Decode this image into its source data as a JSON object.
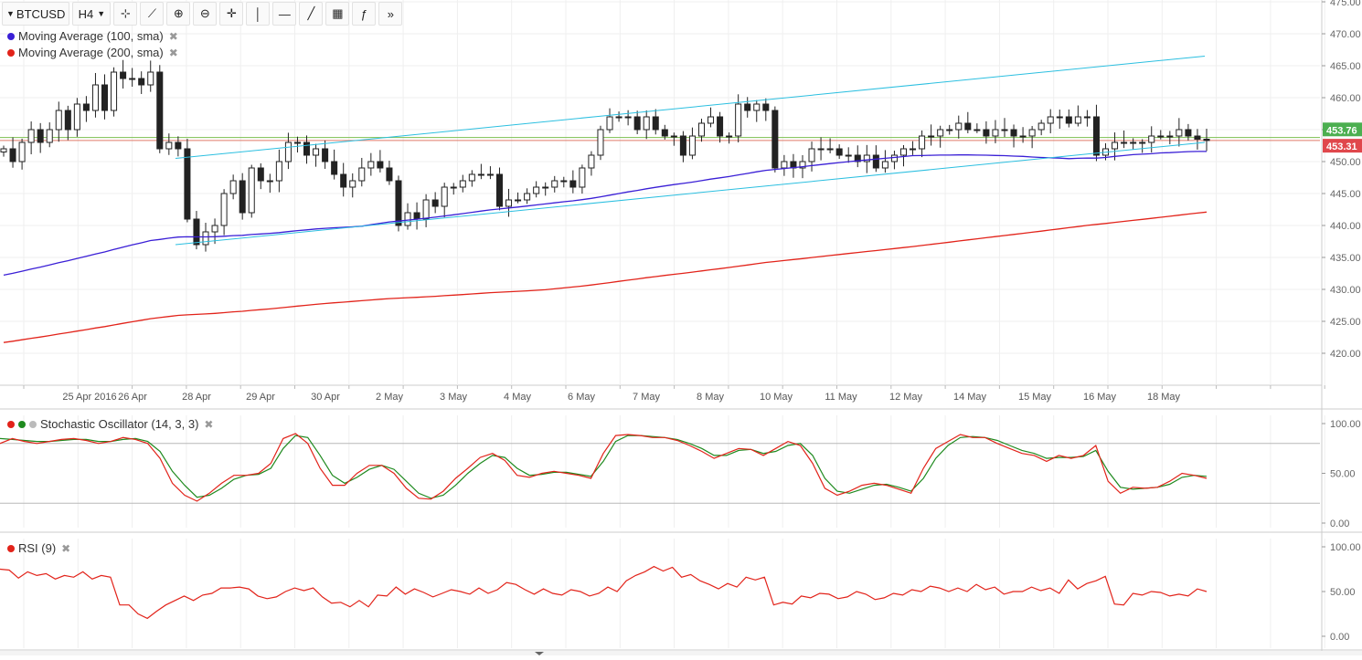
{
  "toolbar": {
    "symbol": "BTCUSD",
    "interval": "H4",
    "tools": [
      {
        "name": "crosshair-icon",
        "glyph": "⊹"
      },
      {
        "name": "trend-chart-icon",
        "glyph": "⟋"
      },
      {
        "name": "zoom-in-icon",
        "glyph": "⊕"
      },
      {
        "name": "zoom-out-icon",
        "glyph": "⊖"
      },
      {
        "name": "cross-cursor-icon",
        "glyph": "✛"
      },
      {
        "name": "vertical-line-icon",
        "glyph": "│"
      },
      {
        "name": "horizontal-line-icon",
        "glyph": "—"
      },
      {
        "name": "trend-line-icon",
        "glyph": "╱"
      },
      {
        "name": "fibonacci-icon",
        "glyph": "▦"
      },
      {
        "name": "function-icon",
        "glyph": "ƒ"
      },
      {
        "name": "fast-forward-icon",
        "glyph": "»"
      }
    ]
  },
  "legends": {
    "ma100": {
      "label": "Moving Average (100, sma)",
      "color": "#3a1fd6"
    },
    "ma200": {
      "label": "Moving Average (200, sma)",
      "color": "#e2231a"
    },
    "stoch": {
      "label": "Stochastic Oscillator (14, 3, 3)"
    },
    "rsi": {
      "label": "RSI (9)"
    }
  },
  "colors": {
    "up": "#ffffff",
    "down": "#222222",
    "channel": "#2bbfe0",
    "stochK": "#e2231a",
    "stochD": "#1f8a1f",
    "rsi": "#e2231a",
    "priceGreen": "#4caf50",
    "priceRed": "#e0474c"
  },
  "chart_data": [
    {
      "type": "candlestick",
      "title": "BTCUSD H4",
      "ylim": [
        415,
        475
      ],
      "yticks": [
        420,
        425,
        430,
        435,
        440,
        445,
        450,
        455,
        460,
        465,
        470,
        475
      ],
      "xlabels": [
        "25 Apr 2016",
        "26 Apr",
        "28 Apr",
        "29 Apr",
        "30 Apr",
        "2 May",
        "3 May",
        "4 May",
        "6 May",
        "7 May",
        "8 May",
        "10 May",
        "11 May",
        "12 May",
        "14 May",
        "15 May",
        "16 May",
        "18 May"
      ],
      "price_labels": {
        "green": "453.76",
        "red": "453.31"
      },
      "price_levels": {
        "green": 453.76,
        "red": 453.31
      },
      "close": [
        452,
        450,
        453,
        455,
        453,
        455,
        458,
        455,
        459,
        458,
        462,
        458,
        464,
        463,
        463,
        462,
        464,
        452,
        453,
        452,
        441,
        437,
        439,
        440,
        445,
        447,
        442,
        449,
        447,
        447,
        450,
        453,
        453,
        451,
        452,
        450,
        448,
        446,
        447,
        449,
        450,
        449,
        447,
        440,
        442,
        441,
        444,
        443,
        446,
        446,
        447,
        448,
        448,
        448,
        443,
        444,
        444,
        445,
        446,
        446,
        447,
        447,
        446,
        449,
        451,
        455,
        457,
        457,
        457,
        455,
        457,
        455,
        454,
        454,
        451,
        454,
        456,
        457,
        454,
        454,
        459,
        458,
        459,
        458,
        449,
        450,
        449,
        450,
        452,
        452,
        452,
        451,
        451,
        450,
        451,
        449,
        450,
        451,
        452,
        452,
        454,
        454,
        455,
        455,
        456,
        455,
        455,
        454,
        455,
        455,
        454,
        454,
        455,
        456,
        457,
        457,
        456,
        457,
        457,
        451,
        452,
        453,
        453,
        453,
        453,
        454,
        454,
        454,
        455,
        454,
        453.5,
        453.3
      ]
    },
    {
      "type": "line",
      "name": "Stochastic Oscillator (14, 3, 3)",
      "ylim": [
        0,
        100
      ],
      "yticks": [
        0,
        50,
        100
      ],
      "levels": [
        20,
        80
      ],
      "K": [
        80,
        85,
        82,
        80,
        82,
        84,
        85,
        83,
        80,
        82,
        86,
        84,
        80,
        65,
        40,
        28,
        22,
        30,
        40,
        48,
        48,
        50,
        60,
        85,
        90,
        80,
        55,
        38,
        38,
        50,
        58,
        58,
        50,
        35,
        25,
        24,
        32,
        45,
        55,
        66,
        70,
        63,
        48,
        46,
        50,
        52,
        50,
        48,
        45,
        70,
        88,
        89,
        88,
        86,
        86,
        83,
        78,
        72,
        65,
        70,
        75,
        74,
        68,
        75,
        82,
        78,
        60,
        35,
        28,
        32,
        38,
        40,
        38,
        34,
        30,
        55,
        75,
        82,
        89,
        86,
        86,
        80,
        75,
        70,
        68,
        62,
        68,
        65,
        68,
        78,
        42,
        30,
        36,
        35,
        36,
        42,
        50,
        48,
        45
      ],
      "D": [
        85,
        84,
        83,
        82,
        82,
        83,
        84,
        84,
        82,
        82,
        84,
        85,
        82,
        72,
        52,
        38,
        26,
        28,
        35,
        44,
        48,
        49,
        55,
        75,
        88,
        86,
        68,
        48,
        40,
        46,
        54,
        58,
        54,
        42,
        30,
        25,
        28,
        38,
        50,
        60,
        68,
        66,
        55,
        48,
        49,
        51,
        51,
        49,
        47,
        62,
        82,
        88,
        88,
        87,
        86,
        84,
        80,
        75,
        68,
        68,
        73,
        74,
        70,
        72,
        78,
        80,
        68,
        45,
        32,
        30,
        34,
        38,
        39,
        36,
        32,
        45,
        65,
        78,
        86,
        87,
        86,
        83,
        78,
        73,
        70,
        65,
        66,
        66,
        67,
        73,
        52,
        36,
        34,
        35,
        36,
        39,
        46,
        48,
        47
      ]
    },
    {
      "type": "line",
      "name": "RSI (9)",
      "ylim": [
        0,
        100
      ],
      "yticks": [
        0,
        50,
        100
      ],
      "values": [
        75,
        74,
        65,
        72,
        68,
        70,
        64,
        68,
        66,
        72,
        64,
        68,
        66,
        35,
        35,
        25,
        20,
        28,
        35,
        40,
        45,
        40,
        46,
        48,
        54,
        54,
        55,
        53,
        45,
        42,
        44,
        50,
        54,
        51,
        54,
        44,
        37,
        38,
        33,
        40,
        33,
        46,
        45,
        55,
        47,
        53,
        49,
        44,
        48,
        52,
        50,
        47,
        54,
        48,
        52,
        60,
        58,
        52,
        47,
        53,
        48,
        46,
        52,
        50,
        45,
        48,
        55,
        50,
        62,
        68,
        72,
        78,
        73,
        77,
        66,
        69,
        62,
        58,
        53,
        59,
        55,
        66,
        63,
        66,
        35,
        38,
        36,
        45,
        43,
        48,
        47,
        42,
        44,
        50,
        47,
        41,
        43,
        48,
        46,
        52,
        50,
        56,
        54,
        50,
        54,
        50,
        58,
        52,
        55,
        47,
        50,
        50,
        55,
        51,
        54,
        48,
        63,
        53,
        59,
        62,
        67,
        36,
        35,
        48,
        46,
        50,
        49,
        45,
        47,
        45,
        53,
        50
      ]
    }
  ]
}
